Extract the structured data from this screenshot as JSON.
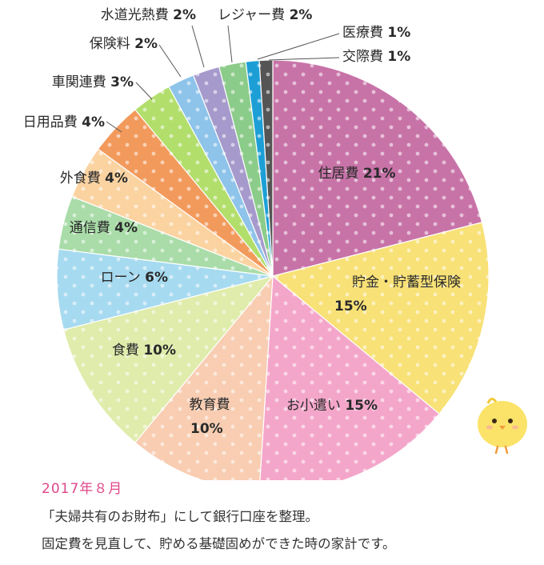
{
  "chart_data": {
    "type": "pie",
    "start": "top",
    "direction": "clockwise",
    "slices": [
      {
        "label": "住居費",
        "percent_text": "21%",
        "value": 21,
        "color": "#c873a8",
        "label_mode": "inside-one-line"
      },
      {
        "label": "貯金・貯蓄型保険",
        "percent_text": "15%",
        "value": 15,
        "color": "#f8e176",
        "label_mode": "inside-two-line"
      },
      {
        "label": "お小遣い",
        "percent_text": "15%",
        "value": 15,
        "color": "#f4a6ca",
        "label_mode": "inside-one-line"
      },
      {
        "label": "教育費",
        "percent_text": "10%",
        "value": 10,
        "color": "#f8cdb2",
        "label_mode": "inside-two-line"
      },
      {
        "label": "食費",
        "percent_text": "10%",
        "value": 10,
        "color": "#dfecab",
        "label_mode": "inside-one-line"
      },
      {
        "label": "ローン",
        "percent_text": "6%",
        "value": 6,
        "color": "#a6daf0",
        "label_mode": "outside"
      },
      {
        "label": "通信費",
        "percent_text": "4%",
        "value": 4,
        "color": "#a9dca8",
        "label_mode": "outside"
      },
      {
        "label": "外食費",
        "percent_text": "4%",
        "value": 4,
        "color": "#fbd3a1",
        "label_mode": "outside"
      },
      {
        "label": "日用品費",
        "percent_text": "4%",
        "value": 4,
        "color": "#f29a5c",
        "label_mode": "outside-leader"
      },
      {
        "label": "車関連費",
        "percent_text": "3%",
        "value": 3,
        "color": "#b2de6c",
        "label_mode": "outside-leader"
      },
      {
        "label": "保険料",
        "percent_text": "2%",
        "value": 2,
        "color": "#8ec3ea",
        "label_mode": "outside-leader"
      },
      {
        "label": "水道光熱費",
        "percent_text": "2%",
        "value": 2,
        "color": "#a59acb",
        "label_mode": "outside-leader"
      },
      {
        "label": "レジャー費",
        "percent_text": "2%",
        "value": 2,
        "color": "#8ccc8a",
        "label_mode": "outside-leader"
      },
      {
        "label": "医療費",
        "percent_text": "1%",
        "value": 1,
        "color": "#1d9fd6",
        "label_mode": "outside-leader"
      },
      {
        "label": "交際費",
        "percent_text": "1%",
        "value": 1,
        "color": "#555555",
        "label_mode": "outside-leader"
      }
    ],
    "pattern": "white polka dots"
  },
  "caption": {
    "date": "2017年８月",
    "line1": "「夫婦共有のお財布」にして銀行口座を整理。",
    "line2": "固定費を見直して、貯める基礎固めができた時の家計です。"
  },
  "decoration": {
    "icon": "chick-icon"
  }
}
